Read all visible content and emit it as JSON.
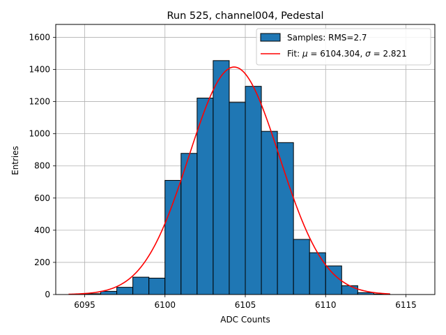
{
  "chart_data": {
    "type": "bar",
    "title": "Run 525, channel004, Pedestal",
    "xlabel": "ADC Counts",
    "ylabel": "Entries",
    "xlim": [
      6093.2,
      6116.8
    ],
    "ylim": [
      0,
      1680
    ],
    "xticks": [
      6095,
      6100,
      6105,
      6110,
      6115
    ],
    "yticks": [
      0,
      200,
      400,
      600,
      800,
      1000,
      1200,
      1400,
      1600
    ],
    "grid": true,
    "legend_position": "top-right",
    "histogram": {
      "name": "Samples: RMS=2.7",
      "color": "#1f77b4",
      "edgecolor": "#000000",
      "bins": [
        {
          "x0": 6095,
          "x1": 6096,
          "count": 5
        },
        {
          "x0": 6096,
          "x1": 6097,
          "count": 20
        },
        {
          "x0": 6097,
          "x1": 6098,
          "count": 45
        },
        {
          "x0": 6098,
          "x1": 6099,
          "count": 108
        },
        {
          "x0": 6099,
          "x1": 6100,
          "count": 102
        },
        {
          "x0": 6100,
          "x1": 6101,
          "count": 710
        },
        {
          "x0": 6101,
          "x1": 6102,
          "count": 878
        },
        {
          "x0": 6102,
          "x1": 6103,
          "count": 1222
        },
        {
          "x0": 6103,
          "x1": 6104,
          "count": 1455
        },
        {
          "x0": 6104,
          "x1": 6105,
          "count": 1195
        },
        {
          "x0": 6105,
          "x1": 6106,
          "count": 1295
        },
        {
          "x0": 6106,
          "x1": 6107,
          "count": 1015
        },
        {
          "x0": 6107,
          "x1": 6108,
          "count": 945
        },
        {
          "x0": 6108,
          "x1": 6109,
          "count": 343
        },
        {
          "x0": 6109,
          "x1": 6110,
          "count": 260
        },
        {
          "x0": 6110,
          "x1": 6111,
          "count": 178
        },
        {
          "x0": 6111,
          "x1": 6112,
          "count": 55
        },
        {
          "x0": 6112,
          "x1": 6113,
          "count": 12
        },
        {
          "x0": 6113,
          "x1": 6114,
          "count": 3
        }
      ]
    },
    "fit": {
      "name_prefix": "Fit: ",
      "mu_label": "μ",
      "mu_value": " = 6104.304, ",
      "sigma_label": "σ",
      "sigma_value": " = 2.821",
      "mu": 6104.304,
      "sigma": 2.821,
      "amplitude": 1415,
      "x_range": [
        6094,
        6114
      ],
      "color": "#ff0000"
    }
  }
}
